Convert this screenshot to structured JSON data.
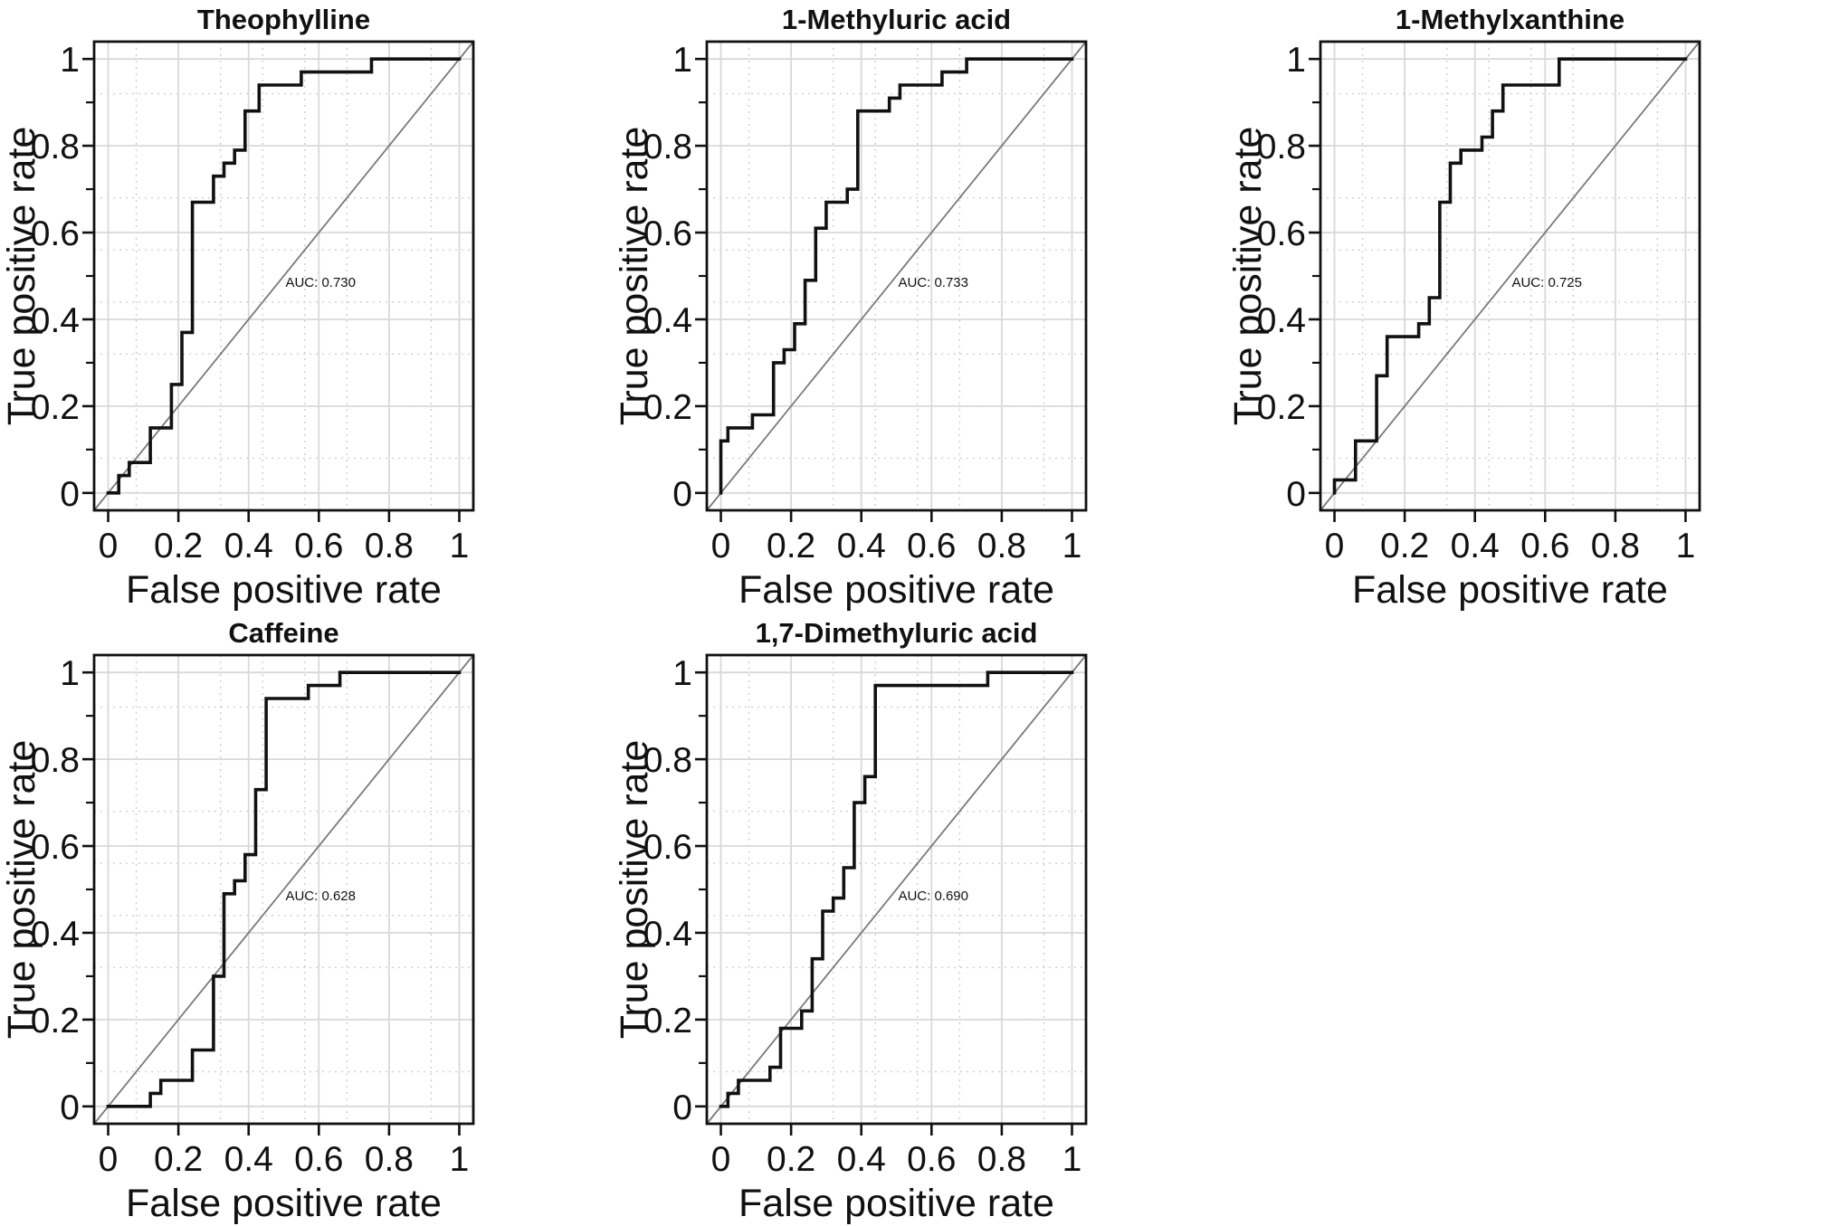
{
  "figure": {
    "background": "#ffffff",
    "grid": {
      "rows": 2,
      "cols": 3,
      "filled_cells": 5
    }
  },
  "axes": {
    "xlim": [
      0,
      1
    ],
    "ylim": [
      0,
      1
    ],
    "range_pad": 0.04,
    "tick_values": [
      0,
      0.2,
      0.4,
      0.6,
      0.8,
      1
    ],
    "tick_labels": [
      "0",
      "0.2",
      "0.4",
      "0.6",
      "0.8",
      "1"
    ],
    "y_minor_tick_values": [
      0.1,
      0.3,
      0.5,
      0.7,
      0.9
    ],
    "grid_major": "solid at 0.2 steps",
    "grid_minor": "dotted between majors",
    "diagonal_reference": true
  },
  "colors": {
    "curve": "#111111",
    "diagonal": "#7a7a7a",
    "grid_major": "#d9d9d9",
    "grid_minor": "#cfcfcf",
    "box": "#111111",
    "text": "#111111",
    "background": "#ffffff"
  },
  "chart_data": [
    {
      "id": "theophylline",
      "type": "line",
      "title": "Theophylline",
      "xlabel": "False positive rate",
      "ylabel": "True positive rate",
      "auc": 0.73,
      "auc_text": "AUC: 0.730",
      "auc_pos": [
        0.505,
        0.475
      ],
      "grid_pos": [
        0,
        0
      ],
      "points": [
        [
          0,
          0
        ],
        [
          0.03,
          0
        ],
        [
          0.03,
          0.04
        ],
        [
          0.06,
          0.04
        ],
        [
          0.06,
          0.07
        ],
        [
          0.12,
          0.07
        ],
        [
          0.12,
          0.15
        ],
        [
          0.18,
          0.15
        ],
        [
          0.18,
          0.25
        ],
        [
          0.21,
          0.25
        ],
        [
          0.21,
          0.37
        ],
        [
          0.24,
          0.37
        ],
        [
          0.24,
          0.67
        ],
        [
          0.3,
          0.67
        ],
        [
          0.3,
          0.73
        ],
        [
          0.33,
          0.73
        ],
        [
          0.33,
          0.76
        ],
        [
          0.36,
          0.76
        ],
        [
          0.36,
          0.79
        ],
        [
          0.39,
          0.79
        ],
        [
          0.39,
          0.88
        ],
        [
          0.43,
          0.88
        ],
        [
          0.43,
          0.94
        ],
        [
          0.55,
          0.94
        ],
        [
          0.55,
          0.97
        ],
        [
          0.75,
          0.97
        ],
        [
          0.75,
          1
        ],
        [
          1,
          1
        ]
      ]
    },
    {
      "id": "methyluric-acid-1",
      "type": "line",
      "title": "1-Methyluric acid",
      "xlabel": "False positive rate",
      "ylabel": "True positive rate",
      "auc": 0.733,
      "auc_text": "AUC: 0.733",
      "auc_pos": [
        0.505,
        0.475
      ],
      "grid_pos": [
        0,
        1
      ],
      "points": [
        [
          0,
          0
        ],
        [
          0,
          0.12
        ],
        [
          0.02,
          0.12
        ],
        [
          0.02,
          0.15
        ],
        [
          0.09,
          0.15
        ],
        [
          0.09,
          0.18
        ],
        [
          0.15,
          0.18
        ],
        [
          0.15,
          0.3
        ],
        [
          0.18,
          0.3
        ],
        [
          0.18,
          0.33
        ],
        [
          0.21,
          0.33
        ],
        [
          0.21,
          0.39
        ],
        [
          0.24,
          0.39
        ],
        [
          0.24,
          0.49
        ],
        [
          0.27,
          0.49
        ],
        [
          0.27,
          0.61
        ],
        [
          0.3,
          0.61
        ],
        [
          0.3,
          0.67
        ],
        [
          0.36,
          0.67
        ],
        [
          0.36,
          0.7
        ],
        [
          0.39,
          0.7
        ],
        [
          0.39,
          0.88
        ],
        [
          0.48,
          0.88
        ],
        [
          0.48,
          0.91
        ],
        [
          0.51,
          0.91
        ],
        [
          0.51,
          0.94
        ],
        [
          0.63,
          0.94
        ],
        [
          0.63,
          0.97
        ],
        [
          0.7,
          0.97
        ],
        [
          0.7,
          1
        ],
        [
          1,
          1
        ]
      ]
    },
    {
      "id": "methylxanthine-1",
      "type": "line",
      "title": "1-Methylxanthine",
      "xlabel": "False positive rate",
      "ylabel": "True positive rate",
      "auc": 0.725,
      "auc_text": "AUC: 0.725",
      "auc_pos": [
        0.505,
        0.475
      ],
      "grid_pos": [
        0,
        2
      ],
      "points": [
        [
          0,
          0
        ],
        [
          0,
          0.03
        ],
        [
          0.06,
          0.03
        ],
        [
          0.06,
          0.12
        ],
        [
          0.12,
          0.12
        ],
        [
          0.12,
          0.27
        ],
        [
          0.15,
          0.27
        ],
        [
          0.15,
          0.36
        ],
        [
          0.24,
          0.36
        ],
        [
          0.24,
          0.39
        ],
        [
          0.27,
          0.39
        ],
        [
          0.27,
          0.45
        ],
        [
          0.3,
          0.45
        ],
        [
          0.3,
          0.67
        ],
        [
          0.33,
          0.67
        ],
        [
          0.33,
          0.76
        ],
        [
          0.36,
          0.76
        ],
        [
          0.36,
          0.79
        ],
        [
          0.42,
          0.79
        ],
        [
          0.42,
          0.82
        ],
        [
          0.45,
          0.82
        ],
        [
          0.45,
          0.88
        ],
        [
          0.48,
          0.88
        ],
        [
          0.48,
          0.94
        ],
        [
          0.64,
          0.94
        ],
        [
          0.64,
          1
        ],
        [
          1,
          1
        ]
      ]
    },
    {
      "id": "caffeine",
      "type": "line",
      "title": "Caffeine",
      "xlabel": "False positive rate",
      "ylabel": "True positive rate",
      "auc": 0.628,
      "auc_text": "AUC: 0.628",
      "auc_pos": [
        0.505,
        0.475
      ],
      "grid_pos": [
        1,
        0
      ],
      "points": [
        [
          0,
          0
        ],
        [
          0.12,
          0
        ],
        [
          0.12,
          0.03
        ],
        [
          0.15,
          0.03
        ],
        [
          0.15,
          0.06
        ],
        [
          0.24,
          0.06
        ],
        [
          0.24,
          0.13
        ],
        [
          0.3,
          0.13
        ],
        [
          0.3,
          0.3
        ],
        [
          0.33,
          0.3
        ],
        [
          0.33,
          0.49
        ],
        [
          0.36,
          0.49
        ],
        [
          0.36,
          0.52
        ],
        [
          0.39,
          0.52
        ],
        [
          0.39,
          0.58
        ],
        [
          0.42,
          0.58
        ],
        [
          0.42,
          0.73
        ],
        [
          0.45,
          0.73
        ],
        [
          0.45,
          0.94
        ],
        [
          0.57,
          0.94
        ],
        [
          0.57,
          0.97
        ],
        [
          0.66,
          0.97
        ],
        [
          0.66,
          1
        ],
        [
          1,
          1
        ]
      ]
    },
    {
      "id": "dimethyluric-acid-17",
      "type": "line",
      "title": "1,7-Dimethyluric acid",
      "xlabel": "False positive rate",
      "ylabel": "True positive rate",
      "auc": 0.69,
      "auc_text": "AUC: 0.690",
      "auc_pos": [
        0.505,
        0.475
      ],
      "grid_pos": [
        1,
        1
      ],
      "points": [
        [
          0,
          0
        ],
        [
          0.02,
          0
        ],
        [
          0.02,
          0.03
        ],
        [
          0.05,
          0.03
        ],
        [
          0.05,
          0.06
        ],
        [
          0.14,
          0.06
        ],
        [
          0.14,
          0.09
        ],
        [
          0.17,
          0.09
        ],
        [
          0.17,
          0.18
        ],
        [
          0.23,
          0.18
        ],
        [
          0.23,
          0.22
        ],
        [
          0.26,
          0.22
        ],
        [
          0.26,
          0.34
        ],
        [
          0.29,
          0.34
        ],
        [
          0.29,
          0.45
        ],
        [
          0.32,
          0.45
        ],
        [
          0.32,
          0.48
        ],
        [
          0.35,
          0.48
        ],
        [
          0.35,
          0.55
        ],
        [
          0.38,
          0.55
        ],
        [
          0.38,
          0.7
        ],
        [
          0.41,
          0.7
        ],
        [
          0.41,
          0.76
        ],
        [
          0.44,
          0.76
        ],
        [
          0.44,
          0.97
        ],
        [
          0.76,
          0.97
        ],
        [
          0.76,
          1
        ],
        [
          1,
          1
        ]
      ]
    }
  ]
}
